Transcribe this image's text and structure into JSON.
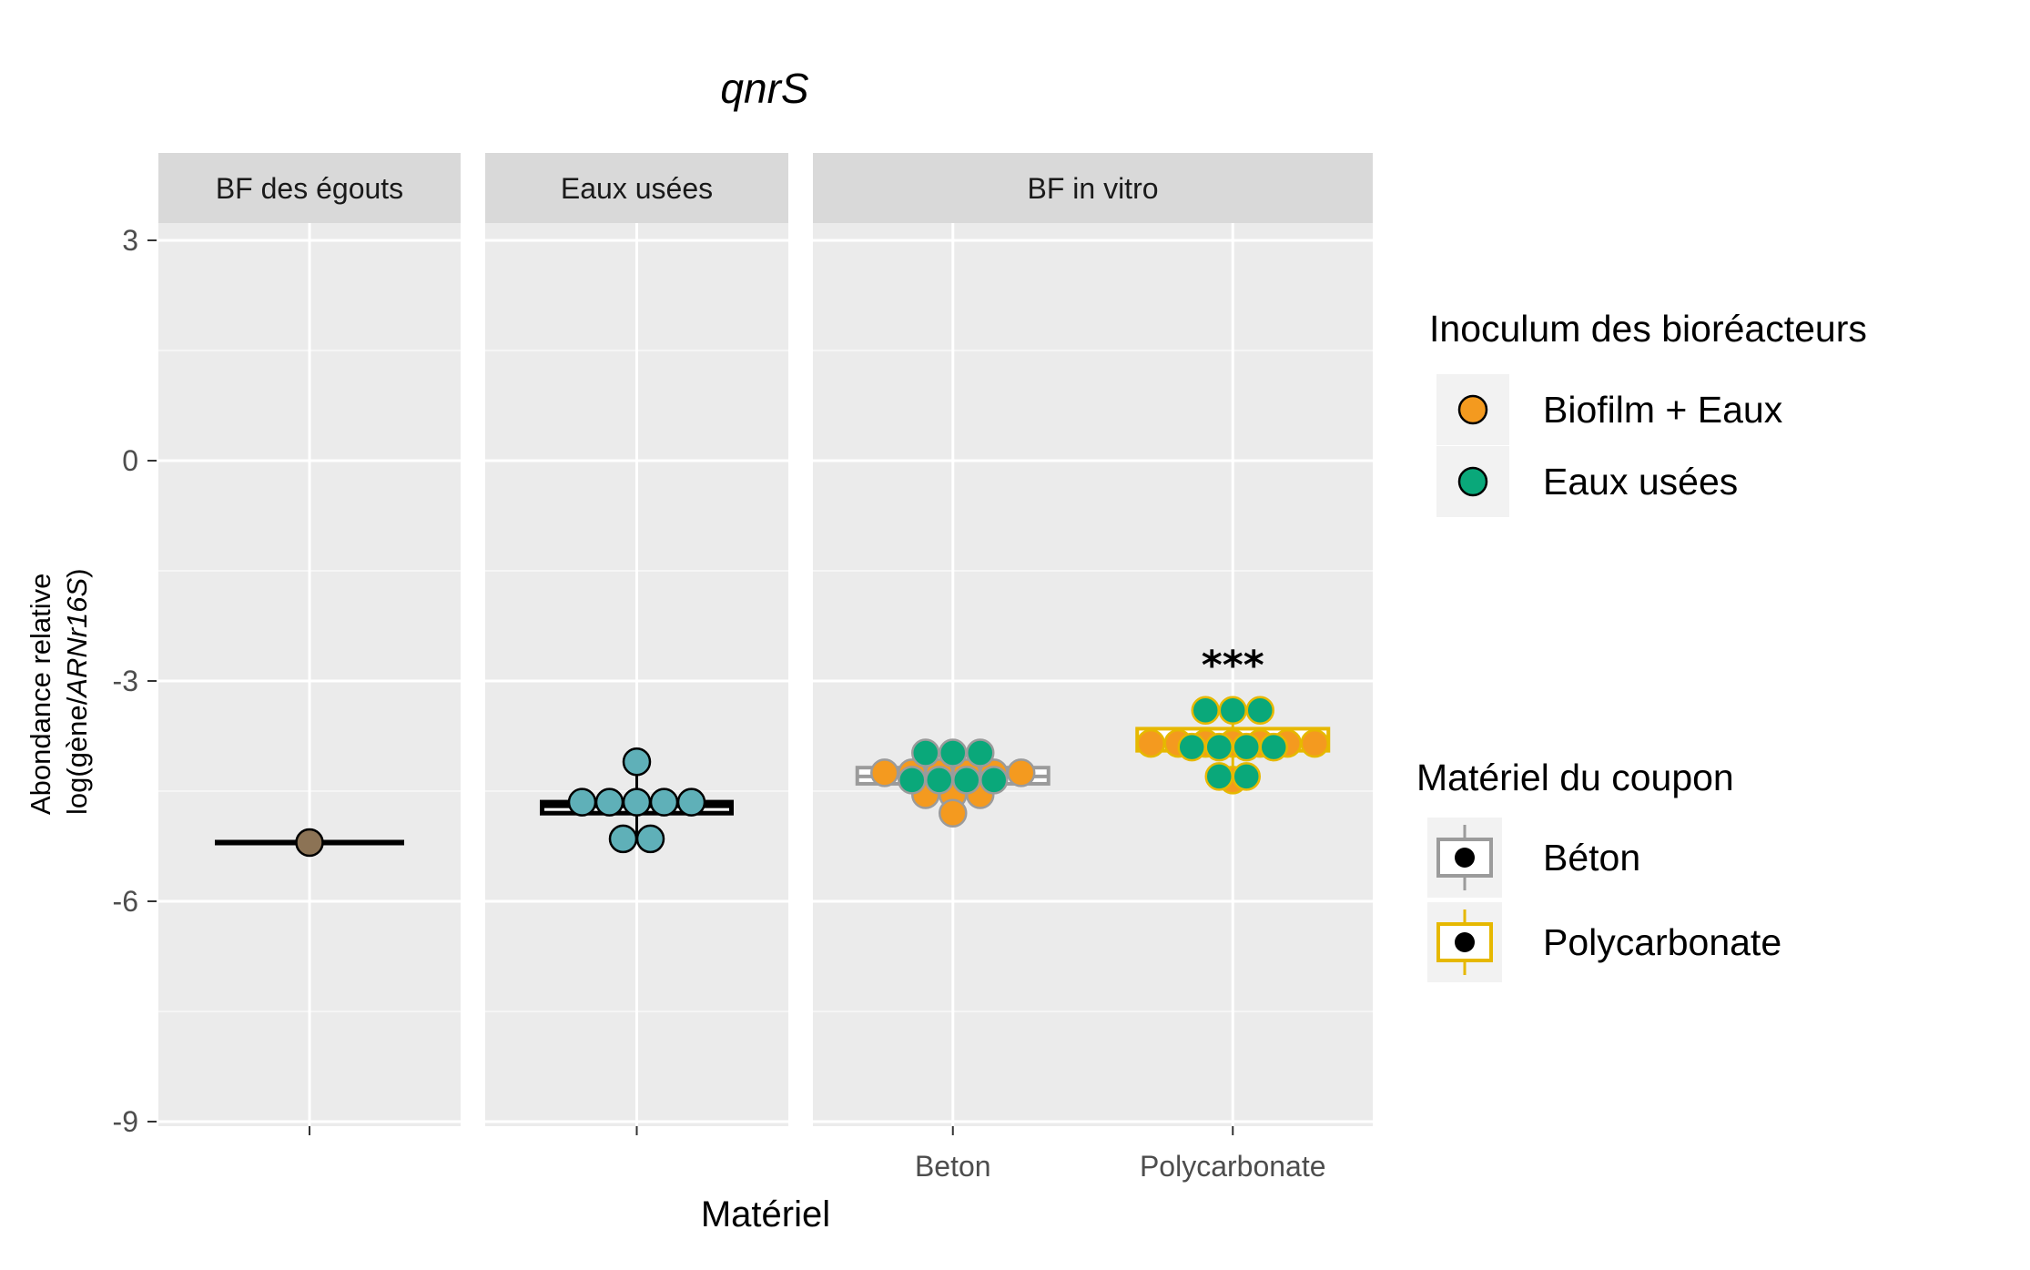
{
  "chart_data": {
    "type": "scatter",
    "title": "qnrS",
    "xlabel": "Matériel",
    "ylabel_line1": "Abondance relative",
    "ylabel_line2_prefix": "log(gène/",
    "ylabel_line2_italic": "ARNr16S",
    "ylabel_line2_suffix": ")",
    "ylim": [
      -9,
      3
    ],
    "y_ticks": [
      "3",
      "0",
      "-3",
      "-6",
      "-9"
    ],
    "y_tick_values": [
      3,
      0,
      -3,
      -6,
      -9
    ],
    "grid": true,
    "facets": [
      {
        "label": "BF des égouts",
        "categories": [
          ""
        ],
        "boxes": [
          {
            "category": "",
            "q1": -5.2,
            "median": -5.2,
            "q3": -5.2,
            "min": -5.2,
            "max": -5.2,
            "material": "none"
          }
        ],
        "points": [
          {
            "category": "",
            "y": -5.2,
            "fill": "#8c7355"
          }
        ]
      },
      {
        "label": "Eaux usées",
        "categories": [
          ""
        ],
        "boxes": [
          {
            "category": "",
            "q1": -4.8,
            "median": -4.7,
            "q3": -4.65,
            "min": -5.15,
            "max": -4.1,
            "material": "none"
          }
        ],
        "points": [
          {
            "category": "",
            "y": -4.1,
            "fill": "#5fb0b8"
          },
          {
            "category": "",
            "y": -4.65,
            "fill": "#5fb0b8"
          },
          {
            "category": "",
            "y": -4.65,
            "fill": "#5fb0b8"
          },
          {
            "category": "",
            "y": -4.65,
            "fill": "#5fb0b8"
          },
          {
            "category": "",
            "y": -4.65,
            "fill": "#5fb0b8"
          },
          {
            "category": "",
            "y": -4.65,
            "fill": "#5fb0b8"
          },
          {
            "category": "",
            "y": -5.15,
            "fill": "#5fb0b8"
          },
          {
            "category": "",
            "y": -5.15,
            "fill": "#5fb0b8"
          }
        ]
      },
      {
        "label": "BF in vitro",
        "categories": [
          "Beton",
          "Polycarbonate"
        ],
        "boxes": [
          {
            "category": "Beton",
            "q1": -4.4,
            "median": -4.3,
            "q3": -4.18,
            "min": -4.8,
            "max": -3.98,
            "material": "Béton"
          },
          {
            "category": "Polycarbonate",
            "q1": -3.95,
            "median": -3.85,
            "q3": -3.65,
            "min": -4.35,
            "max": -3.4,
            "material": "Polycarbonate"
          }
        ],
        "points": [
          {
            "category": "Beton",
            "y": -4.25,
            "fill": "#f49a1f"
          },
          {
            "category": "Beton",
            "y": -4.25,
            "fill": "#f49a1f"
          },
          {
            "category": "Beton",
            "y": -4.25,
            "fill": "#f49a1f"
          },
          {
            "category": "Beton",
            "y": -4.25,
            "fill": "#f49a1f"
          },
          {
            "category": "Beton",
            "y": -4.25,
            "fill": "#f49a1f"
          },
          {
            "category": "Beton",
            "y": -4.25,
            "fill": "#f49a1f"
          },
          {
            "category": "Beton",
            "y": -4.55,
            "fill": "#f49a1f"
          },
          {
            "category": "Beton",
            "y": -4.55,
            "fill": "#f49a1f"
          },
          {
            "category": "Beton",
            "y": -4.55,
            "fill": "#f49a1f"
          },
          {
            "category": "Beton",
            "y": -4.8,
            "fill": "#f49a1f"
          },
          {
            "category": "Beton",
            "y": -3.98,
            "fill": "#0aa87a"
          },
          {
            "category": "Beton",
            "y": -3.98,
            "fill": "#0aa87a"
          },
          {
            "category": "Beton",
            "y": -3.98,
            "fill": "#0aa87a"
          },
          {
            "category": "Beton",
            "y": -4.35,
            "fill": "#0aa87a"
          },
          {
            "category": "Beton",
            "y": -4.35,
            "fill": "#0aa87a"
          },
          {
            "category": "Beton",
            "y": -4.35,
            "fill": "#0aa87a"
          },
          {
            "category": "Beton",
            "y": -4.35,
            "fill": "#0aa87a"
          },
          {
            "category": "Polycarbonate",
            "y": -3.85,
            "fill": "#f49a1f"
          },
          {
            "category": "Polycarbonate",
            "y": -3.85,
            "fill": "#f49a1f"
          },
          {
            "category": "Polycarbonate",
            "y": -3.85,
            "fill": "#f49a1f"
          },
          {
            "category": "Polycarbonate",
            "y": -3.85,
            "fill": "#f49a1f"
          },
          {
            "category": "Polycarbonate",
            "y": -3.85,
            "fill": "#f49a1f"
          },
          {
            "category": "Polycarbonate",
            "y": -3.85,
            "fill": "#f49a1f"
          },
          {
            "category": "Polycarbonate",
            "y": -3.85,
            "fill": "#f49a1f"
          },
          {
            "category": "Polycarbonate",
            "y": -4.35,
            "fill": "#f49a1f"
          },
          {
            "category": "Polycarbonate",
            "y": -3.4,
            "fill": "#0aa87a"
          },
          {
            "category": "Polycarbonate",
            "y": -3.4,
            "fill": "#0aa87a"
          },
          {
            "category": "Polycarbonate",
            "y": -3.4,
            "fill": "#0aa87a"
          },
          {
            "category": "Polycarbonate",
            "y": -3.9,
            "fill": "#0aa87a"
          },
          {
            "category": "Polycarbonate",
            "y": -3.9,
            "fill": "#0aa87a"
          },
          {
            "category": "Polycarbonate",
            "y": -3.9,
            "fill": "#0aa87a"
          },
          {
            "category": "Polycarbonate",
            "y": -3.9,
            "fill": "#0aa87a"
          },
          {
            "category": "Polycarbonate",
            "y": -4.3,
            "fill": "#0aa87a"
          },
          {
            "category": "Polycarbonate",
            "y": -4.3,
            "fill": "#0aa87a"
          }
        ],
        "annotations": [
          {
            "category": "Polycarbonate",
            "y": -2.6,
            "text": "***"
          }
        ]
      }
    ],
    "legend_inoculum": {
      "title": "Inoculum des bioréacteurs",
      "position": "right",
      "items": [
        {
          "label": "Biofilm + Eaux",
          "color": "#f49a1f"
        },
        {
          "label": "Eaux usées",
          "color": "#0aa87a"
        }
      ]
    },
    "legend_material": {
      "title": "Matériel du coupon",
      "position": "right",
      "items": [
        {
          "label": "Béton",
          "color": "#9b9b9b"
        },
        {
          "label": "Polycarbonate",
          "color": "#e6b800"
        }
      ]
    }
  }
}
